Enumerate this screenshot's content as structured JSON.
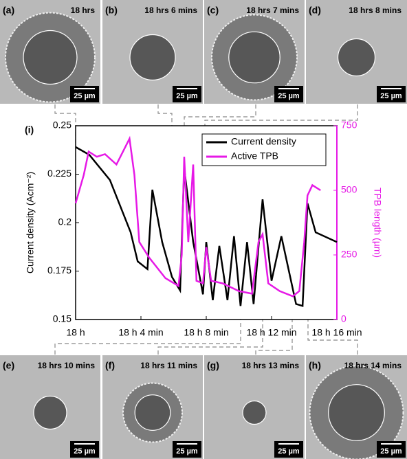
{
  "panels": [
    {
      "label": "(a)",
      "time": "18 hrs",
      "scale": "25 µm"
    },
    {
      "label": "(b)",
      "time": "18 hrs 6 mins",
      "scale": "25 µm"
    },
    {
      "label": "(c)",
      "time": "18 hrs 7 mins",
      "scale": "25 µm"
    },
    {
      "label": "(d)",
      "time": "18 hrs 8 mins",
      "scale": "25 µm"
    },
    {
      "label": "(e)",
      "time": "18 hrs 10 mins",
      "scale": "25 µm"
    },
    {
      "label": "(f)",
      "time": "18 hrs 11 mins",
      "scale": "25 µm"
    },
    {
      "label": "(g)",
      "time": "18 hrs 13 mins",
      "scale": "25 µm"
    },
    {
      "label": "(h)",
      "time": "18 hrs 14 mins",
      "scale": "25 µm"
    }
  ],
  "chart_data": {
    "type": "line",
    "panel_label": "(i)",
    "y_label": "Current density (Acm⁻²)",
    "y2_label": "TPB length (µm)",
    "xlim": [
      0,
      16
    ],
    "xticks": [
      {
        "value": 0,
        "label": "18 h"
      },
      {
        "value": 4,
        "label": "18 h 4 min"
      },
      {
        "value": 8,
        "label": "18 h 8 min"
      },
      {
        "value": 12,
        "label": "18 h 12 min"
      },
      {
        "value": 16,
        "label": "18 h 16 min"
      }
    ],
    "ylim": [
      0.15,
      0.25
    ],
    "yticks": [
      0.15,
      0.175,
      0.2,
      0.225,
      0.25
    ],
    "y2lim": [
      0,
      750
    ],
    "y2ticks": [
      0,
      250,
      500,
      750
    ],
    "legend": "top-right",
    "series": [
      {
        "name": "Current density",
        "color": "#000000",
        "x": [
          0,
          0.84,
          2.1,
          3.37,
          3.8,
          4.4,
          4.7,
          5.3,
          5.9,
          6.4,
          6.65,
          7.2,
          7.8,
          8.0,
          8.4,
          8.8,
          9.3,
          9.7,
          10.1,
          10.5,
          10.9,
          11.45,
          12.0,
          12.6,
          13.5,
          13.9,
          14.2,
          14.7,
          16
        ],
        "values": [
          0.239,
          0.235,
          0.222,
          0.195,
          0.18,
          0.176,
          0.217,
          0.19,
          0.172,
          0.165,
          0.228,
          0.19,
          0.163,
          0.19,
          0.16,
          0.188,
          0.16,
          0.193,
          0.157,
          0.19,
          0.158,
          0.212,
          0.17,
          0.193,
          0.158,
          0.157,
          0.21,
          0.195,
          0.19
        ]
      },
      {
        "name": "Active TPB",
        "color": "#e619e6",
        "axis": "y2",
        "x": [
          0,
          0.5,
          0.8,
          1.3,
          1.8,
          2.5,
          3.3,
          3.6,
          3.9,
          4.5,
          5.5,
          6.3,
          6.5,
          6.65,
          6.9,
          7.2,
          7.4,
          7.8,
          8.0,
          8.3,
          9,
          10,
          10.8,
          11.2,
          11.45,
          11.8,
          12.5,
          13.3,
          13.7,
          14,
          14.2,
          14.5,
          15
        ],
        "values": [
          450,
          560,
          650,
          630,
          640,
          600,
          700,
          560,
          300,
          240,
          160,
          130,
          250,
          630,
          300,
          600,
          150,
          140,
          280,
          150,
          140,
          110,
          100,
          300,
          330,
          140,
          110,
          90,
          110,
          300,
          480,
          520,
          500
        ]
      }
    ]
  }
}
